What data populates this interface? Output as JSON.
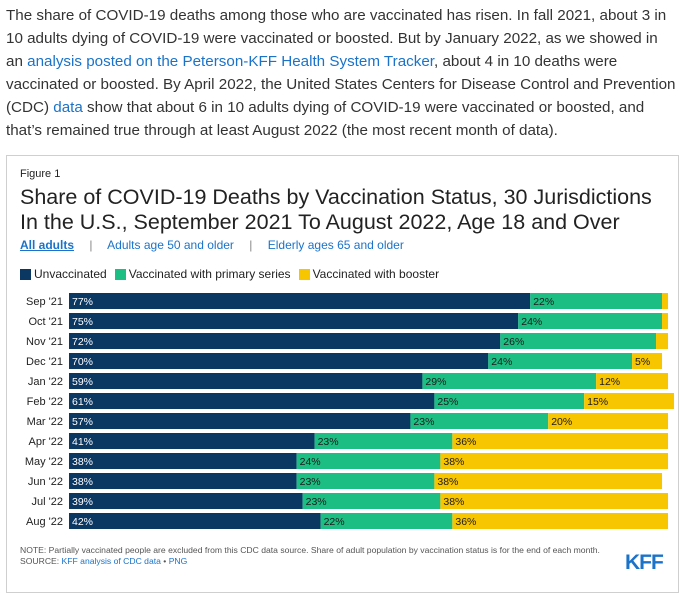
{
  "intro": {
    "t1": "The share of COVID-19 deaths among those who are vaccinated has risen. In fall 2021, about 3 in 10 adults dying of COVID-19 were vaccinated or boosted. But by January 2022, as we showed in an ",
    "link1": "analysis posted on the Peterson-KFF Health System Tracker",
    "t2": ", about 4 in 10 deaths were vaccinated or boosted. By April 2022, the United States Centers for Disease Control and Prevention (CDC) ",
    "link2": "data",
    "t3": " show that about 6 in 10 adults dying of COVID-19 were vaccinated or boosted, and that’s remained true through at least August 2022 (the most recent month of data)."
  },
  "figure": {
    "label": "Figure 1",
    "tabs": [
      "All adults",
      "Adults age 50 and older",
      "Elderly ages 65 and older"
    ],
    "tab_separator": "|",
    "note": "NOTE: Partially vaccinated people are excluded from this CDC data source. Share of adult population by vaccination status is for the end of each month.",
    "source_prefix": "SOURCE: ",
    "source_link": "KFF analysis of CDC data",
    "source_sep": " • ",
    "source_png": "PNG",
    "logo": "KFF"
  },
  "colors": {
    "unvaccinated": "#0b3763",
    "primary": "#1dbe84",
    "booster": "#f8c600"
  },
  "chart_data": {
    "type": "bar",
    "orientation": "horizontal",
    "stacked": true,
    "title": "Share of COVID-19 Deaths by Vaccination Status, 30 Jurisdictions In the U.S., September 2021 To August 2022, Age 18 and Over",
    "categories": [
      "Sep '21",
      "Oct '21",
      "Nov '21",
      "Dec '21",
      "Jan '22",
      "Feb '22",
      "Mar '22",
      "Apr '22",
      "May '22",
      "Jun '22",
      "Jul '22",
      "Aug '22"
    ],
    "series": [
      {
        "name": "Unvaccinated",
        "values": [
          77,
          75,
          72,
          70,
          59,
          61,
          57,
          41,
          38,
          38,
          39,
          42
        ]
      },
      {
        "name": "Vaccinated with primary series",
        "values": [
          22,
          24,
          26,
          24,
          29,
          25,
          23,
          23,
          24,
          23,
          23,
          22
        ]
      },
      {
        "name": "Vaccinated with booster",
        "values": [
          1,
          1,
          2,
          5,
          12,
          15,
          20,
          36,
          38,
          38,
          38,
          36
        ]
      }
    ],
    "data_labels": [
      [
        "77%",
        "22%",
        ""
      ],
      [
        "75%",
        "24%",
        ""
      ],
      [
        "72%",
        "26%",
        ""
      ],
      [
        "70%",
        "24%",
        "5%"
      ],
      [
        "59%",
        "29%",
        "12%"
      ],
      [
        "61%",
        "25%",
        "15%"
      ],
      [
        "57%",
        "23%",
        "20%"
      ],
      [
        "41%",
        "23%",
        "36%"
      ],
      [
        "38%",
        "24%",
        "38%"
      ],
      [
        "38%",
        "23%",
        "38%"
      ],
      [
        "39%",
        "23%",
        "38%"
      ],
      [
        "42%",
        "22%",
        "36%"
      ]
    ],
    "xlim": [
      0,
      100
    ],
    "legend_position": "top-left"
  }
}
